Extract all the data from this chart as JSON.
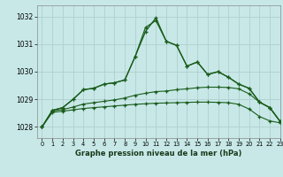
{
  "title": "Graphe pression niveau de la mer (hPa)",
  "bg_color": "#c8e8e8",
  "grid_color": "#b0d0d0",
  "line_color": "#1a5c1a",
  "xlim": [
    -0.5,
    23
  ],
  "ylim": [
    1027.6,
    1032.4
  ],
  "yticks": [
    1028,
    1029,
    1030,
    1031,
    1032
  ],
  "xticks": [
    0,
    1,
    2,
    3,
    4,
    5,
    6,
    7,
    8,
    9,
    10,
    11,
    12,
    13,
    14,
    15,
    16,
    17,
    18,
    19,
    20,
    21,
    22,
    23
  ],
  "series": {
    "jagged1": [
      1028.0,
      1028.6,
      1028.7,
      1029.0,
      1029.35,
      1029.4,
      1029.55,
      1029.6,
      1029.7,
      1030.55,
      1031.45,
      1031.95,
      1031.1,
      1030.95,
      1030.2,
      1030.35,
      1029.9,
      1030.0,
      1029.8,
      1029.55,
      1029.4,
      1028.9,
      1028.7,
      1028.2
    ],
    "jagged2": [
      1028.0,
      1028.6,
      1028.7,
      1029.0,
      1029.35,
      1029.4,
      1029.55,
      1029.6,
      1029.7,
      1030.55,
      1031.6,
      1031.85,
      1031.1,
      1030.95,
      1030.2,
      1030.35,
      1029.9,
      1030.0,
      1029.8,
      1029.55,
      1029.4,
      1028.9,
      1028.7,
      1028.2
    ],
    "env_upper": [
      1028.0,
      1028.58,
      1028.63,
      1028.72,
      1028.83,
      1028.88,
      1028.93,
      1028.98,
      1029.05,
      1029.15,
      1029.22,
      1029.28,
      1029.3,
      1029.35,
      1029.38,
      1029.42,
      1029.44,
      1029.44,
      1029.43,
      1029.38,
      1029.2,
      1028.9,
      1028.7,
      1028.2
    ],
    "env_lower": [
      1028.0,
      1028.53,
      1028.57,
      1028.62,
      1028.67,
      1028.7,
      1028.73,
      1028.76,
      1028.79,
      1028.82,
      1028.84,
      1028.86,
      1028.87,
      1028.88,
      1028.89,
      1028.9,
      1028.9,
      1028.89,
      1028.88,
      1028.82,
      1028.65,
      1028.38,
      1028.22,
      1028.15
    ]
  }
}
